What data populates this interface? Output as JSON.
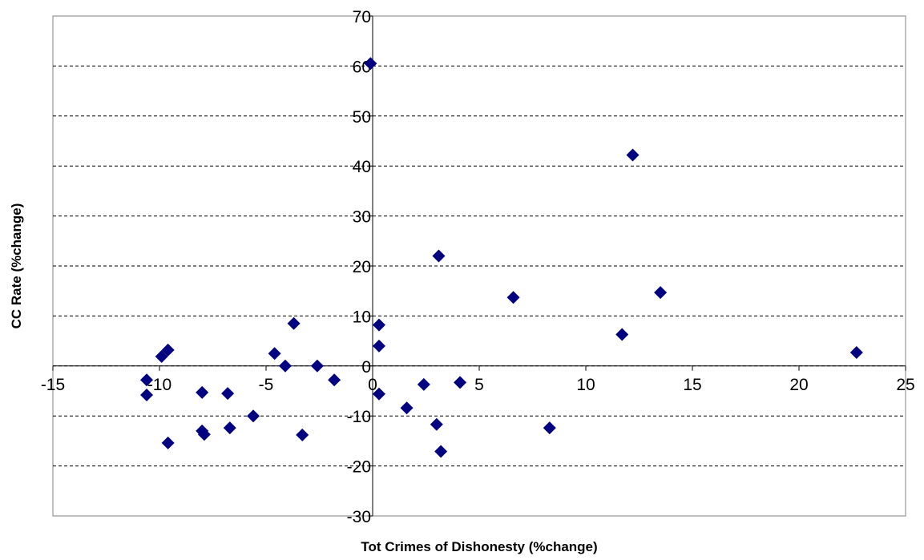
{
  "chart_data": {
    "type": "scatter",
    "x_label": "Tot Crimes of Dishonesty (%change)",
    "y_label": "CC Rate (%change)",
    "color": "#000080",
    "grid": true,
    "xlim": [
      -15,
      25
    ],
    "xticks": [
      -15,
      -10,
      -5,
      0,
      5,
      10,
      15,
      20,
      25
    ],
    "ylim": [
      -30,
      70
    ],
    "yticks": [
      -30,
      -20,
      -10,
      0,
      10,
      20,
      30,
      40,
      50,
      60,
      70
    ],
    "x": [
      -0.1,
      12.2,
      3.1,
      6.6,
      13.5,
      11.7,
      22.7,
      0.3,
      0.3,
      -3.7,
      -4.6,
      -4.1,
      -2.6,
      -1.8,
      -9.6,
      -9.9,
      -10.6,
      -10.6,
      -8.0,
      -6.8,
      -8.0,
      -7.9,
      -6.7,
      -5.6,
      -3.3,
      -9.6,
      0.3,
      1.6,
      2.4,
      4.1,
      3.0,
      3.2,
      8.3
    ],
    "y": [
      60.5,
      42.2,
      22,
      13.7,
      14.7,
      6.3,
      2.7,
      8.2,
      4,
      8.5,
      2.5,
      0,
      0,
      -2.8,
      3.2,
      1.9,
      -2.8,
      -5.8,
      -5.3,
      -5.5,
      -13,
      -13.7,
      -12.4,
      -10,
      -13.8,
      -15.4,
      -5.6,
      -8.4,
      -3.7,
      -3.3,
      -11.7,
      -17.1,
      -12.4
    ]
  }
}
